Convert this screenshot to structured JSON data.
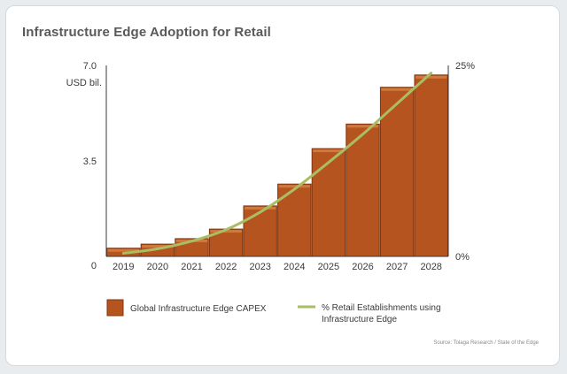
{
  "colors": {
    "bar_fill": "#b5541e",
    "bar_highlight": "#cf7a3c",
    "bar_edge": "#7f3512",
    "line": "#a9bd63",
    "axis": "#3a3a3a",
    "text": "#3a3a3a",
    "title": "#5a5a5a"
  },
  "title": "Infrastructure Edge Adoption for Retail",
  "source": "Source: Tolaga Research / State of the Edge",
  "chart_data": {
    "type": "bar",
    "title": "Infrastructure Edge Adoption for Retail",
    "categories": [
      "2019",
      "2020",
      "2021",
      "2022",
      "2023",
      "2024",
      "2025",
      "2026",
      "2027",
      "2028"
    ],
    "left_axis": {
      "unit_label": "USD bil.",
      "ylim": [
        0,
        7.0
      ],
      "ticks": [
        "7.0",
        "3.5",
        "0"
      ]
    },
    "right_axis": {
      "ylim": [
        0,
        25
      ],
      "ticks": [
        "25%",
        "0%"
      ]
    },
    "series": [
      {
        "name": "Global Infrastructure Edge CAPEX",
        "type": "bar",
        "axis": "left",
        "values": [
          0.3,
          0.45,
          0.65,
          1.0,
          1.85,
          2.65,
          3.95,
          4.85,
          6.2,
          6.65
        ]
      },
      {
        "name": "% Retail Establishments using Infrastructure Edge",
        "type": "line",
        "axis": "right",
        "values": [
          0.4,
          1.0,
          2.0,
          3.5,
          5.8,
          8.8,
          12.3,
          16.0,
          20.0,
          24.0
        ]
      }
    ],
    "legend": {
      "position": "bottom",
      "items": [
        {
          "label": "Global Infrastructure Edge CAPEX",
          "marker": "bar"
        },
        {
          "label_lines": [
            "% Retail Establishments using",
            "Infrastructure Edge"
          ],
          "marker": "line"
        }
      ]
    },
    "grid": false
  }
}
